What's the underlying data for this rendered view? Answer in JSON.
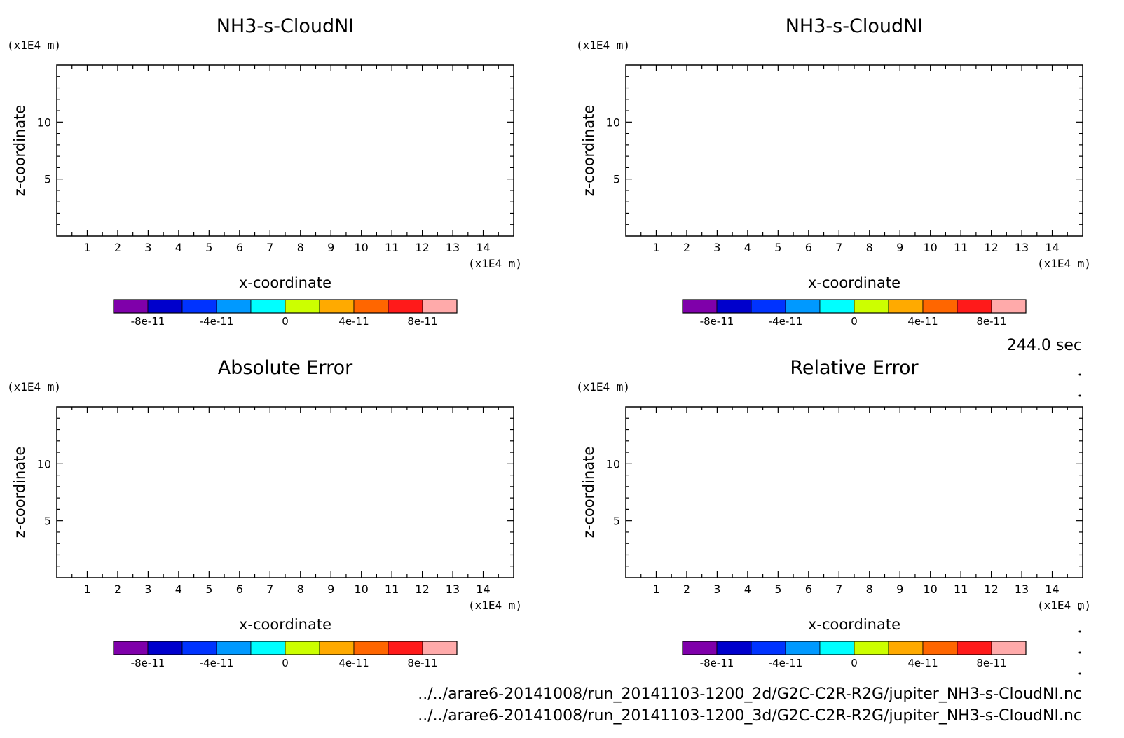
{
  "time_label": "244.0 sec",
  "file_paths": [
    "../../arare6-20141008/run_20141103-1200_2d/G2C-C2R-R2G/jupiter_NH3-s-CloudNI.nc",
    "../../arare6-20141008/run_20141103-1200_3d/G2C-C2R-R2G/jupiter_NH3-s-CloudNI.nc"
  ],
  "colorbar": {
    "colors": [
      "#7f00aa",
      "#0000cc",
      "#0033ff",
      "#0099ff",
      "#00ffff",
      "#ccff00",
      "#ffaa00",
      "#ff6600",
      "#ff1a1a",
      "#ffaaaa"
    ],
    "labels": [
      "-8e-11",
      "-4e-11",
      "0",
      "4e-11",
      "8e-11"
    ],
    "label_values": [
      -8e-11,
      -4e-11,
      0,
      4e-11,
      8e-11
    ],
    "range": [
      -1e-10,
      1e-10
    ]
  },
  "chart_data": [
    {
      "type": "heatmap",
      "title": "NH3-s-CloudNI",
      "xlabel": "x-coordinate",
      "ylabel": "z-coordinate",
      "x_unit": "(x1E4 m)",
      "y_unit": "(x1E4 m)",
      "xlim": [
        0,
        15
      ],
      "ylim": [
        0,
        15
      ],
      "x_ticks": [
        "1",
        "2",
        "3",
        "4",
        "5",
        "6",
        "7",
        "8",
        "9",
        "10",
        "11",
        "12",
        "13",
        "14"
      ],
      "y_ticks": [
        "5",
        "10"
      ],
      "values": []
    },
    {
      "type": "heatmap",
      "title": "NH3-s-CloudNI",
      "xlabel": "x-coordinate",
      "ylabel": "z-coordinate",
      "x_unit": "(x1E4 m)",
      "y_unit": "(x1E4 m)",
      "xlim": [
        0,
        15
      ],
      "ylim": [
        0,
        15
      ],
      "x_ticks": [
        "1",
        "2",
        "3",
        "4",
        "5",
        "6",
        "7",
        "8",
        "9",
        "10",
        "11",
        "12",
        "13",
        "14"
      ],
      "y_ticks": [
        "5",
        "10"
      ],
      "values": []
    },
    {
      "type": "heatmap",
      "title": "Absolute Error",
      "xlabel": "x-coordinate",
      "ylabel": "z-coordinate",
      "x_unit": "(x1E4 m)",
      "y_unit": "(x1E4 m)",
      "xlim": [
        0,
        15
      ],
      "ylim": [
        0,
        15
      ],
      "x_ticks": [
        "1",
        "2",
        "3",
        "4",
        "5",
        "6",
        "7",
        "8",
        "9",
        "10",
        "11",
        "12",
        "13",
        "14"
      ],
      "y_ticks": [
        "5",
        "10"
      ],
      "values": []
    },
    {
      "type": "heatmap",
      "title": "Relative Error",
      "xlabel": "x-coordinate",
      "ylabel": "z-coordinate",
      "x_unit": "(x1E4 m)",
      "y_unit": "(x1E4 m)",
      "xlim": [
        0,
        15
      ],
      "ylim": [
        0,
        15
      ],
      "x_ticks": [
        "1",
        "2",
        "3",
        "4",
        "5",
        "6",
        "7",
        "8",
        "9",
        "10",
        "11",
        "12",
        "13",
        "14"
      ],
      "y_ticks": [
        "5",
        "10"
      ],
      "values": []
    }
  ]
}
